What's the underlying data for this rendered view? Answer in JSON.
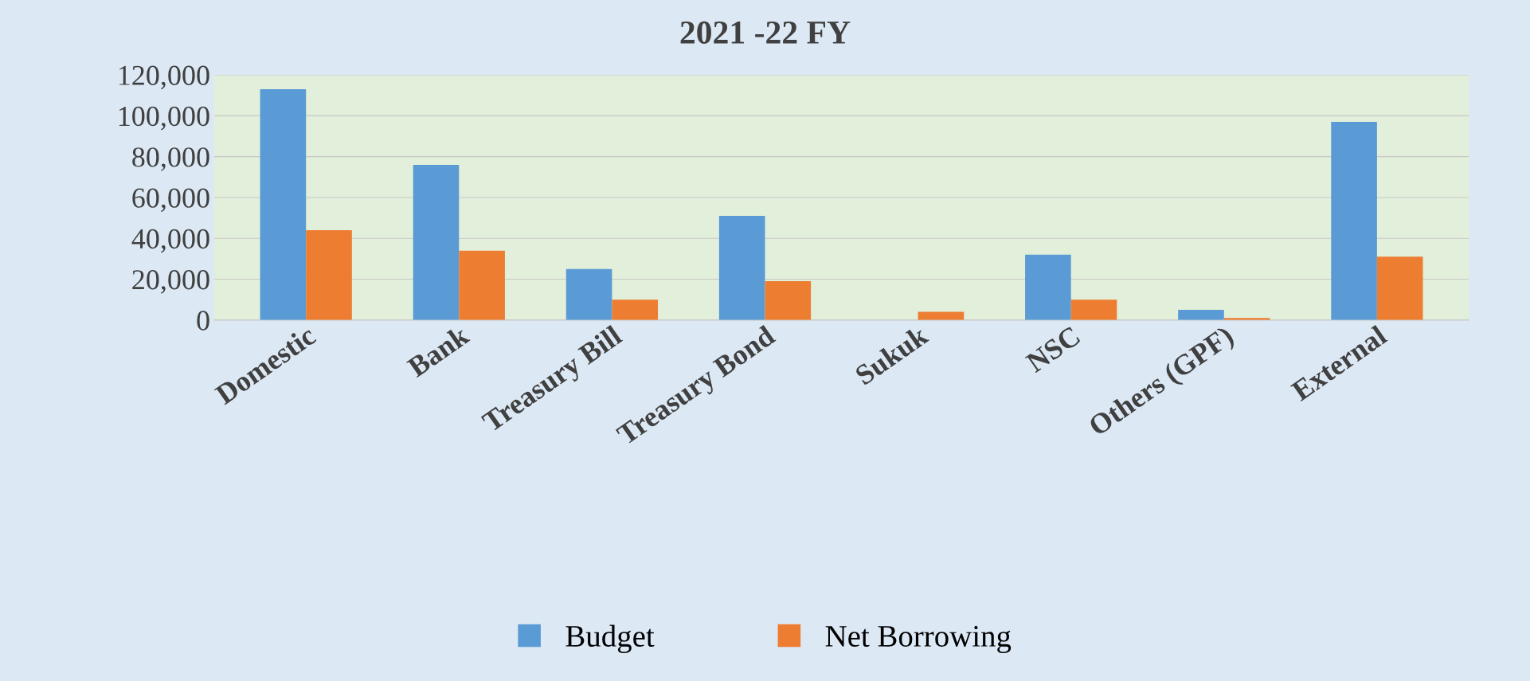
{
  "chart_data": {
    "type": "bar",
    "title": "2021 -22 FY",
    "categories": [
      "Domestic",
      "Bank",
      "Treasury Bill",
      "Treasury Bond",
      "Sukuk",
      "NSC",
      "Others (GPF)",
      "External"
    ],
    "series": [
      {
        "name": "Budget",
        "color": "#5b9bd5",
        "values": [
          113000,
          76000,
          25000,
          51000,
          0,
          32000,
          5000,
          97000
        ]
      },
      {
        "name": "Net Borrowing",
        "color": "#ed7d31",
        "values": [
          44000,
          34000,
          10000,
          19000,
          4000,
          10000,
          1000,
          31000
        ]
      }
    ],
    "ylim": [
      0,
      120000
    ],
    "yticks": [
      {
        "value": 0,
        "label": "0"
      },
      {
        "value": 20000,
        "label": "20,000"
      },
      {
        "value": 40000,
        "label": "40,000"
      },
      {
        "value": 60000,
        "label": "60,000"
      },
      {
        "value": 80000,
        "label": "80,000"
      },
      {
        "value": 100000,
        "label": "100,000"
      },
      {
        "value": 120000,
        "label": "120,000"
      }
    ],
    "grid": "y",
    "legend": "bottom"
  }
}
